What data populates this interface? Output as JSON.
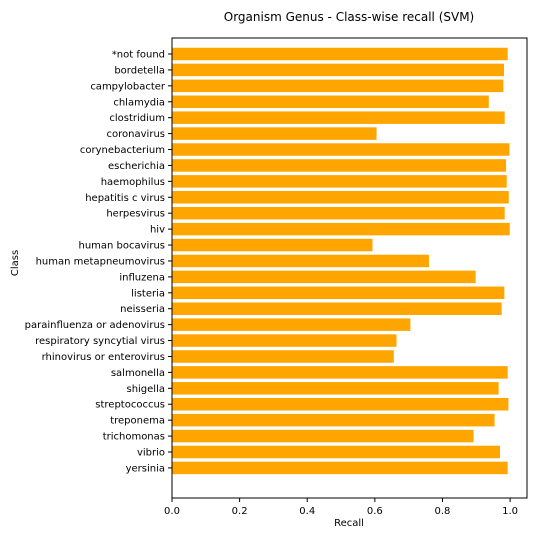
{
  "chart_data": {
    "type": "bar",
    "orientation": "horizontal",
    "title": "Organism Genus - Class-wise recall (SVM)",
    "xlabel": "Recall",
    "ylabel": "Class",
    "xlim": [
      0,
      1.05
    ],
    "xticks": [
      0.0,
      0.2,
      0.4,
      0.6,
      0.8,
      1.0
    ],
    "xtick_labels": [
      "0.0",
      "0.2",
      "0.4",
      "0.6",
      "0.8",
      "1.0"
    ],
    "grid": false,
    "bar_color": "#ffa500",
    "categories": [
      "*not found",
      "bordetella",
      "campylobacter",
      "chlamydia",
      "clostridium",
      "coronavirus",
      "corynebacterium",
      "escherichia",
      "haemophilus",
      "hepatitis c virus",
      "herpesvirus",
      "hiv",
      "human bocavirus",
      "human metapneumovirus",
      "influzena",
      "listeria",
      "neisseria",
      "parainfluenza or adenovirus",
      "respiratory syncytial virus",
      "rhinovirus or enterovirus",
      "salmonella",
      "shigella",
      "streptococcus",
      "treponema",
      "trichomonas",
      "vibrio",
      "yersinia"
    ],
    "values": [
      0.993,
      0.982,
      0.98,
      0.937,
      0.984,
      0.605,
      0.998,
      0.988,
      0.99,
      0.996,
      0.984,
      0.999,
      0.593,
      0.76,
      0.898,
      0.983,
      0.975,
      0.705,
      0.664,
      0.656,
      0.993,
      0.966,
      0.995,
      0.954,
      0.892,
      0.97,
      0.993
    ]
  }
}
